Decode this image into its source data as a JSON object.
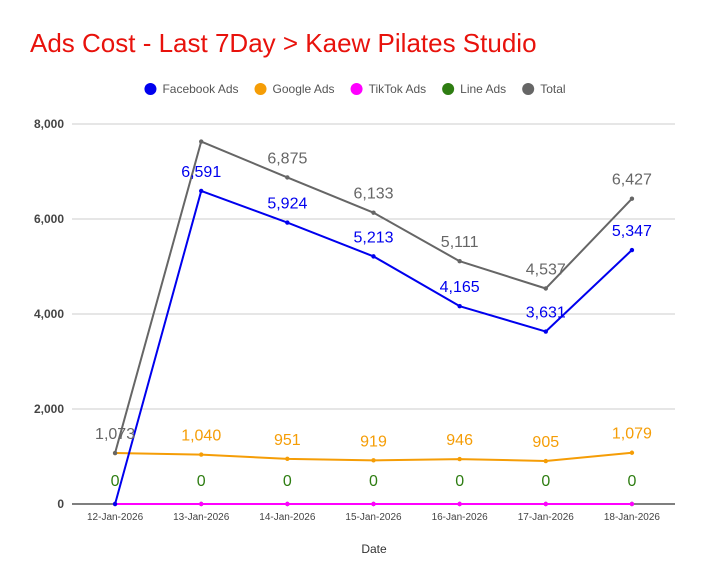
{
  "chart_data": {
    "type": "line",
    "title": "Ads Cost - Last 7Day > Kaew Pilates Studio",
    "xlabel": "Date",
    "ylabel": "",
    "ylim": [
      0,
      8000
    ],
    "yticks": [
      0,
      2000,
      4000,
      6000,
      8000
    ],
    "ytick_labels": [
      "0",
      "2,000",
      "4,000",
      "6,000",
      "8,000"
    ],
    "grid": true,
    "legend_position": "top",
    "categories": [
      "12-Jan-2026",
      "13-Jan-2026",
      "14-Jan-2026",
      "15-Jan-2026",
      "16-Jan-2026",
      "17-Jan-2026",
      "18-Jan-2026"
    ],
    "series": [
      {
        "name": "Facebook Ads",
        "color": "#0000ee",
        "values": [
          0,
          6591,
          5924,
          5213,
          4165,
          3631,
          5347
        ],
        "labels": [
          "",
          "6,591",
          "5,924",
          "5,213",
          "4,165",
          "3,631",
          "5,347"
        ]
      },
      {
        "name": "Google Ads",
        "color": "#f59d06",
        "values": [
          1073,
          1040,
          951,
          919,
          946,
          905,
          1079
        ],
        "labels": [
          "",
          "1,040",
          "951",
          "919",
          "946",
          "905",
          "1,079"
        ]
      },
      {
        "name": "TikTok Ads",
        "color": "#ff00ff",
        "values": [
          0,
          0,
          0,
          0,
          0,
          0,
          0
        ],
        "labels": [
          "",
          "",
          "",
          "",
          "",
          "",
          ""
        ]
      },
      {
        "name": "Line Ads",
        "color": "#2e7d12",
        "values": [
          0,
          0,
          0,
          0,
          0,
          0,
          0
        ],
        "labels": [
          "0",
          "0",
          "0",
          "0",
          "0",
          "0",
          "0"
        ]
      },
      {
        "name": "Total",
        "color": "#666666",
        "values": [
          1073,
          7631,
          6875,
          6133,
          5111,
          4537,
          6427
        ],
        "labels": [
          "1,073",
          "",
          "6,875",
          "6,133",
          "5,111",
          "4,537",
          "6,427"
        ]
      }
    ]
  }
}
